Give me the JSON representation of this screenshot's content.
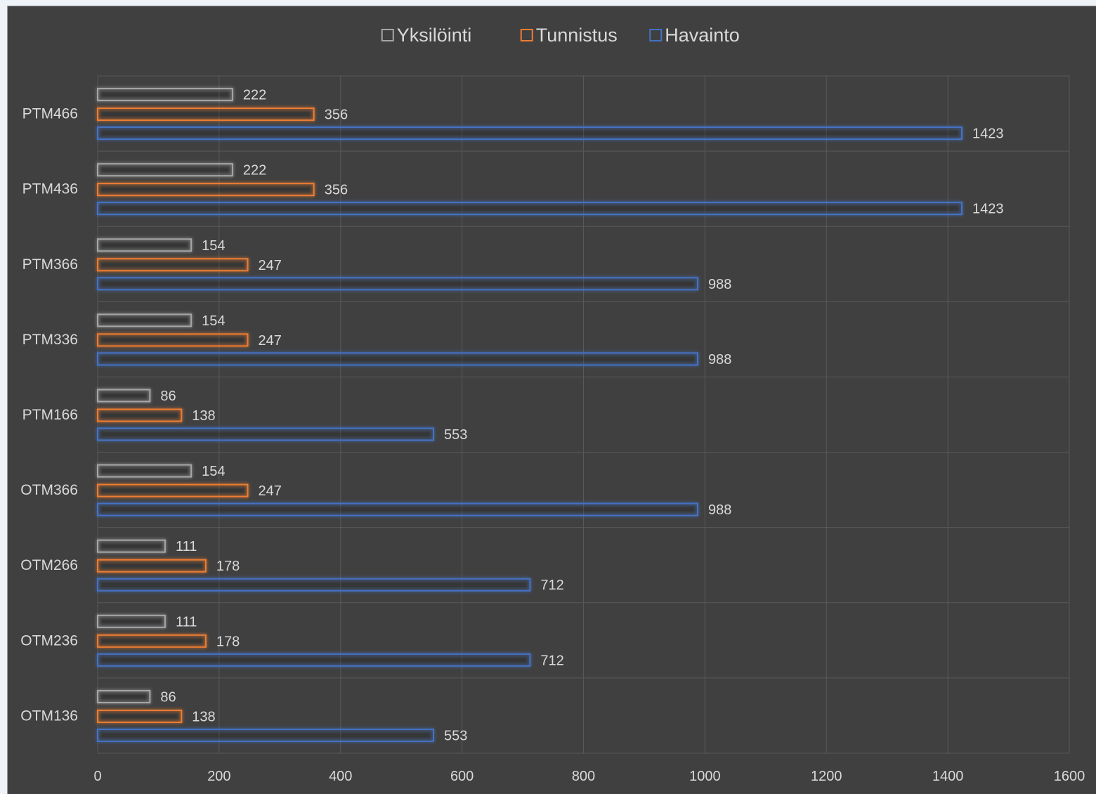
{
  "chart_data": {
    "type": "bar",
    "orientation": "horizontal",
    "categories": [
      "PTM466",
      "PTM436",
      "PTM366",
      "PTM336",
      "PTM166",
      "OTM366",
      "OTM266",
      "OTM236",
      "OTM136"
    ],
    "series": [
      {
        "name": "Yksilöinti",
        "color": "#a6a6a6",
        "values": [
          222,
          222,
          154,
          154,
          86,
          154,
          111,
          111,
          86
        ]
      },
      {
        "name": "Tunnistus",
        "color": "#ed7d31",
        "values": [
          356,
          356,
          247,
          247,
          138,
          247,
          178,
          178,
          138
        ]
      },
      {
        "name": "Havainto",
        "color": "#4472c4",
        "values": [
          1423,
          1423,
          988,
          988,
          553,
          988,
          712,
          712,
          553
        ]
      }
    ],
    "xlim": [
      0,
      1600
    ],
    "xticks": [
      0,
      200,
      400,
      600,
      800,
      1000,
      1200,
      1400,
      1600
    ],
    "legend_position": "top",
    "grid": true,
    "data_labels": true,
    "background": "#404040"
  }
}
